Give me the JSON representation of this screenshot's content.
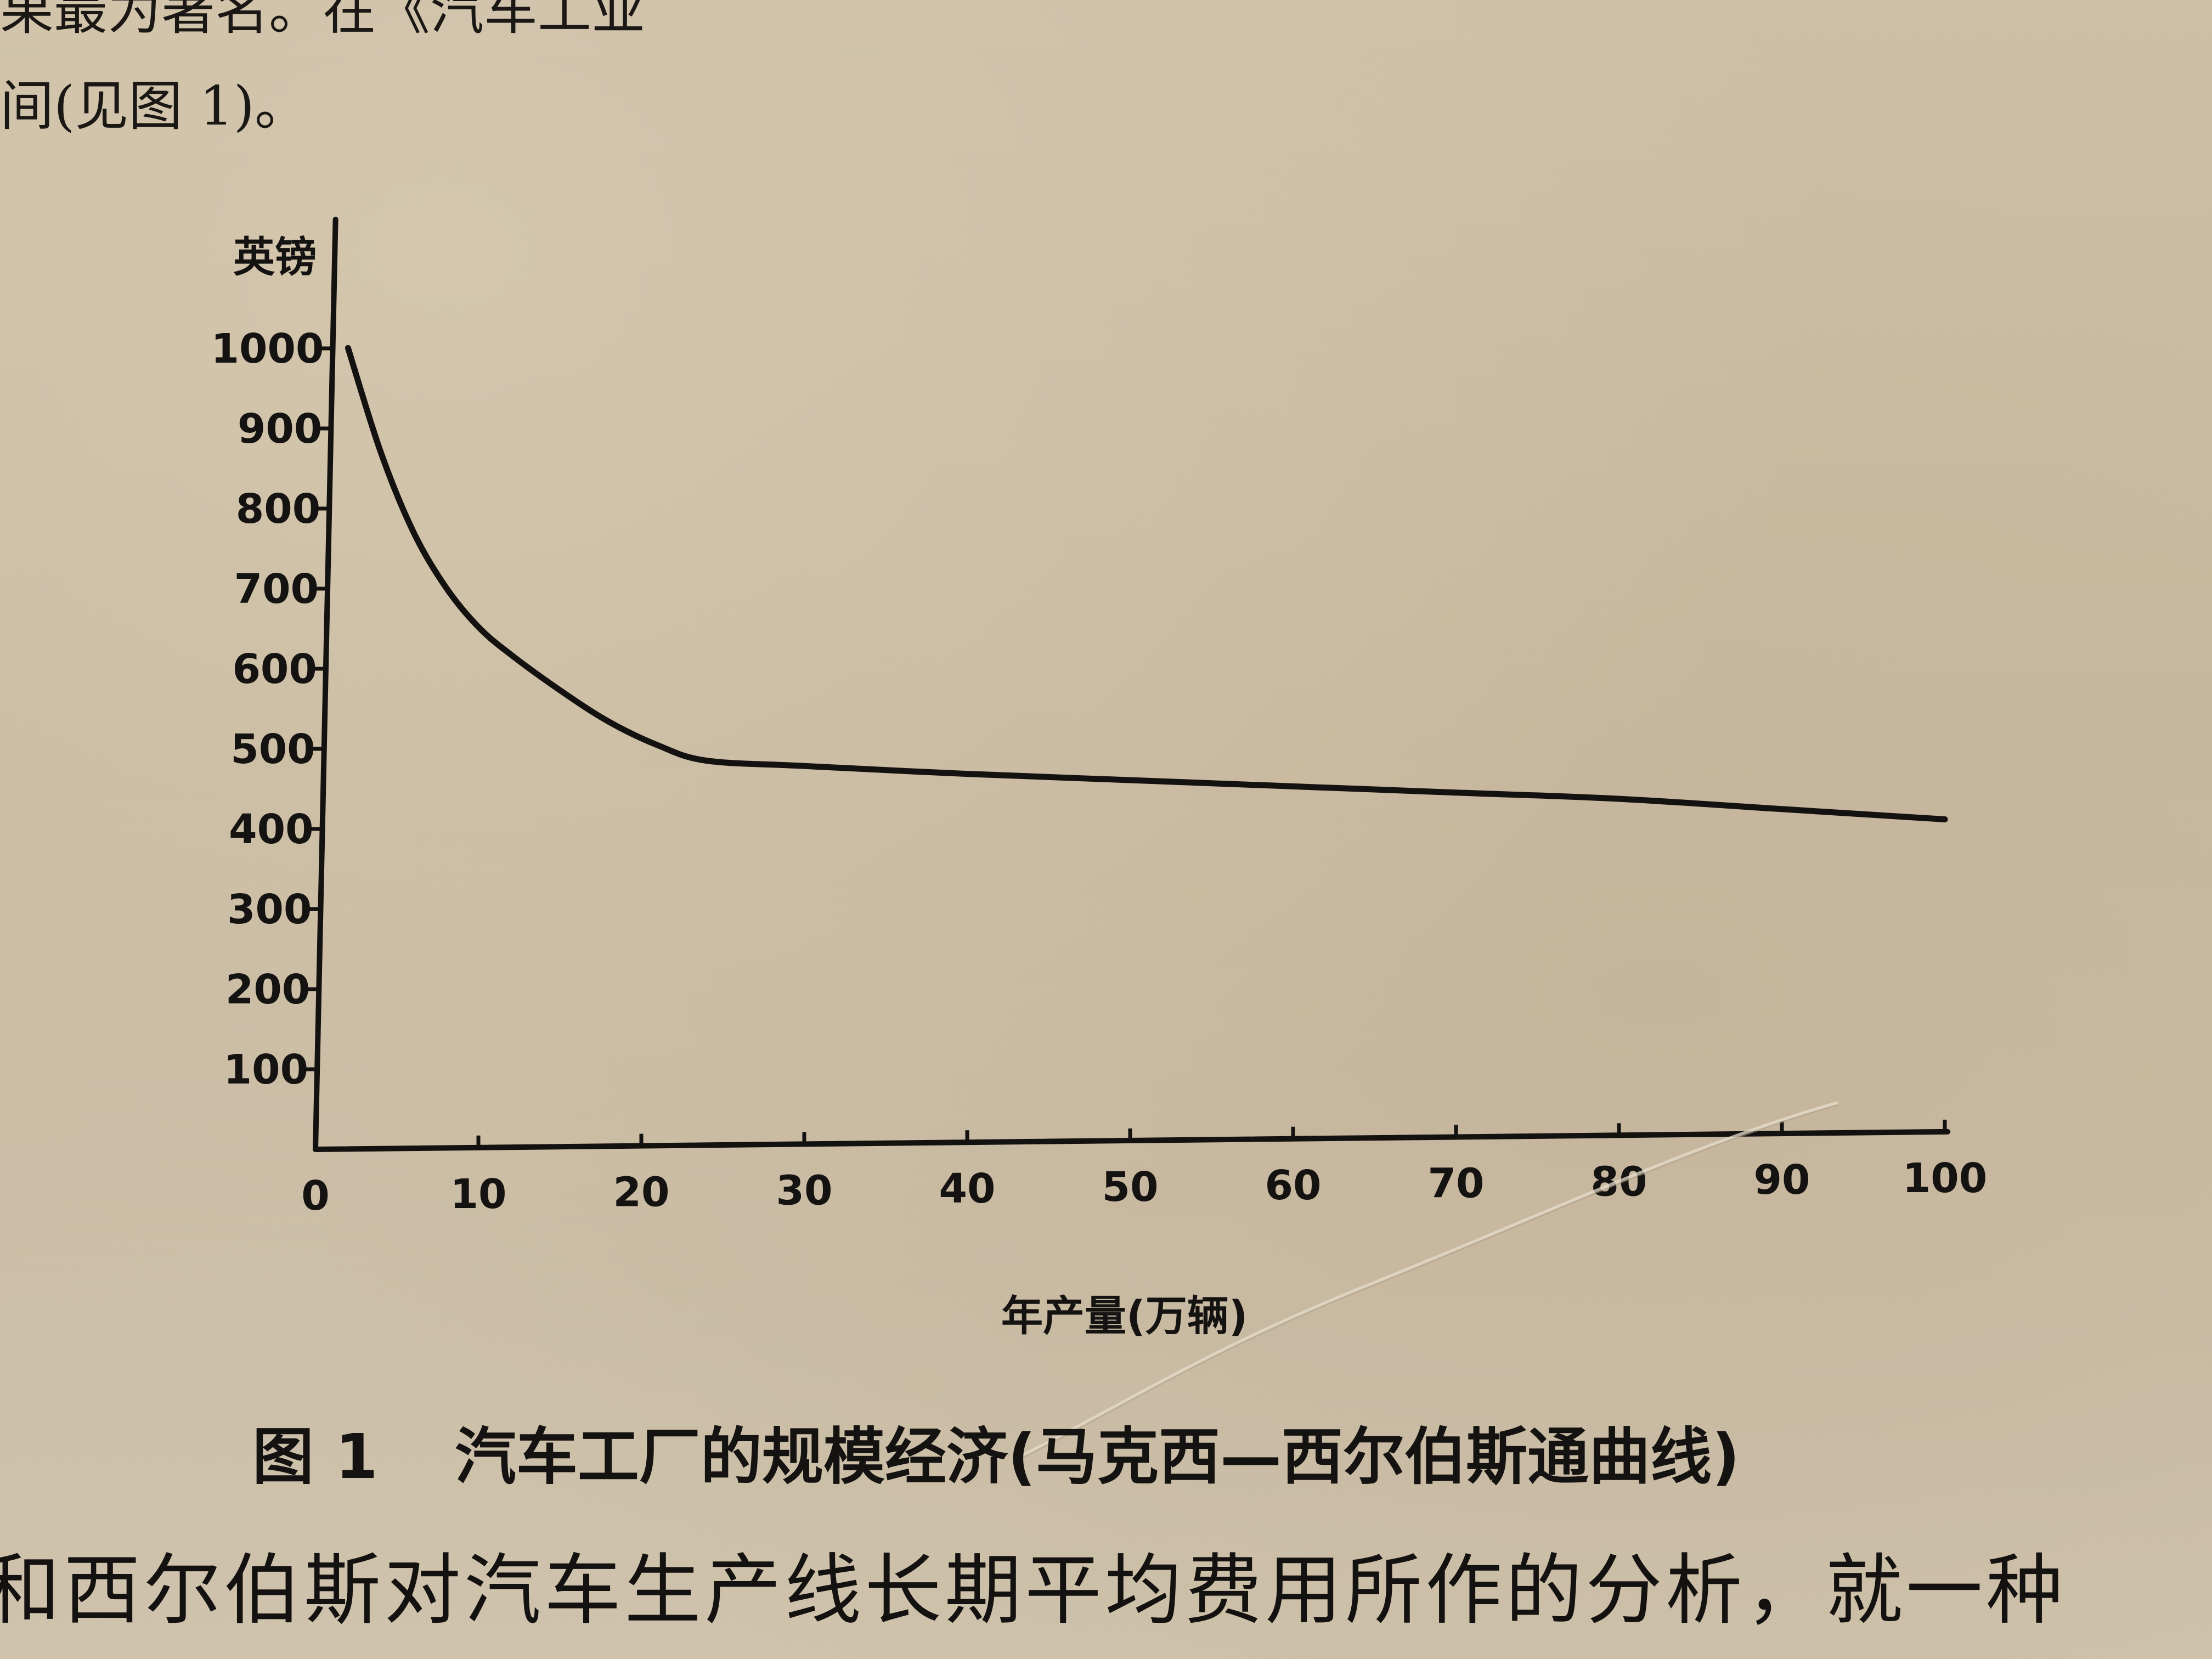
{
  "page": {
    "top_line_1": "果最为著名。在《汽车工业",
    "top_line_2": "间(见图 1)。",
    "caption_number": "图 1",
    "caption_title": "汽车工厂的规模经济(马克西—西尔伯斯通曲线)",
    "bottom_line": "和西尔伯斯对汽车生产线长期平均费用所作的分析，就一种"
  },
  "colors": {
    "paper": "#cbbca3",
    "ink": "#141210"
  },
  "chart_data": {
    "type": "line",
    "title": "",
    "xlabel": "年产量(万辆)",
    "ylabel": "英镑",
    "xlim": [
      0,
      100
    ],
    "ylim": [
      0,
      1000
    ],
    "x_ticks": [
      0,
      10,
      20,
      30,
      40,
      50,
      60,
      70,
      80,
      90,
      100
    ],
    "x_tick_labels": [
      "0",
      "10",
      "20",
      "30",
      "40",
      "50",
      "60",
      "70",
      "80",
      "90",
      "100"
    ],
    "y_ticks": [
      100,
      200,
      300,
      400,
      500,
      600,
      700,
      800,
      900,
      1000
    ],
    "y_tick_labels": [
      "100",
      "200",
      "300",
      "400",
      "500",
      "600",
      "700",
      "800",
      "900",
      "1000"
    ],
    "grid": false,
    "legend": "none",
    "series": [
      {
        "x": [
          2,
          4,
          6,
          8,
          10,
          12,
          15,
          18,
          21,
          24,
          30,
          40,
          50,
          60,
          70,
          80,
          90,
          100
        ],
        "y": [
          1000,
          870,
          770,
          700,
          650,
          615,
          570,
          530,
          500,
          480,
          472,
          460,
          450,
          440,
          430,
          420,
          405,
          390
        ]
      }
    ]
  }
}
